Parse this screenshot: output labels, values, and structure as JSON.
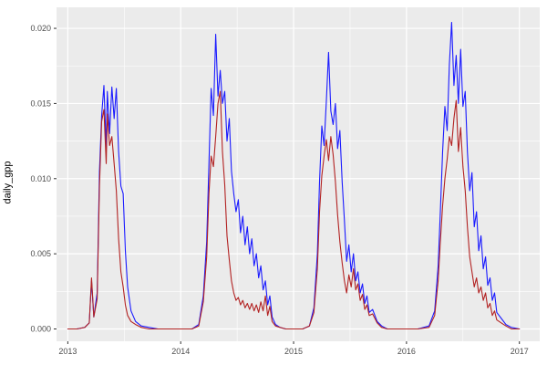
{
  "chart_data": {
    "type": "line",
    "title": "",
    "xlabel": "",
    "ylabel": "daily_gpp",
    "legend": "none",
    "grid": true,
    "panel_bg": "#ebebeb",
    "grid_color": "#ffffff",
    "tick_color": "#333333",
    "tick_label_color": "#4d4d4d",
    "xlim": [
      2012.9,
      2017.18
    ],
    "ylim": [
      -0.00082,
      0.0214
    ],
    "x_ticks": {
      "values": [
        2013,
        2014,
        2015,
        2016,
        2017
      ],
      "labels": [
        "2013",
        "2014",
        "2015",
        "2016",
        "2017"
      ]
    },
    "y_ticks": {
      "values": [
        0,
        0.005,
        0.01,
        0.015,
        0.02
      ],
      "labels": [
        "0.000",
        "0.005",
        "0.010",
        "0.015",
        "0.020"
      ]
    },
    "x_minor": [
      2013.5,
      2014.5,
      2015.5,
      2016.5
    ],
    "y_minor": [
      0.0025,
      0.0075,
      0.0125,
      0.0175
    ],
    "x": [
      2013.0,
      2013.08,
      2013.15,
      2013.19,
      2013.21,
      2013.23,
      2013.26,
      2013.28,
      2013.3,
      2013.32,
      2013.34,
      2013.35,
      2013.37,
      2013.39,
      2013.41,
      2013.43,
      2013.45,
      2013.47,
      2013.49,
      2013.51,
      2013.53,
      2013.56,
      2013.6,
      2013.65,
      2013.72,
      2013.8,
      2013.9,
      2014.0,
      2014.1,
      2014.16,
      2014.2,
      2014.23,
      2014.25,
      2014.27,
      2014.29,
      2014.31,
      2014.33,
      2014.35,
      2014.37,
      2014.39,
      2014.41,
      2014.43,
      2014.45,
      2014.47,
      2014.49,
      2014.51,
      2014.53,
      2014.55,
      2014.57,
      2014.59,
      2014.61,
      2014.63,
      2014.65,
      2014.67,
      2014.69,
      2014.71,
      2014.73,
      2014.75,
      2014.77,
      2014.79,
      2014.81,
      2014.84,
      2014.88,
      2014.93,
      2015.0,
      2015.08,
      2015.14,
      2015.18,
      2015.21,
      2015.23,
      2015.25,
      2015.27,
      2015.29,
      2015.31,
      2015.33,
      2015.35,
      2015.37,
      2015.39,
      2015.41,
      2015.43,
      2015.45,
      2015.47,
      2015.49,
      2015.51,
      2015.53,
      2015.55,
      2015.57,
      2015.59,
      2015.61,
      2015.63,
      2015.65,
      2015.67,
      2015.7,
      2015.74,
      2015.78,
      2015.83,
      2015.92,
      2016.0,
      2016.1,
      2016.2,
      2016.25,
      2016.28,
      2016.3,
      2016.32,
      2016.34,
      2016.36,
      2016.38,
      2016.4,
      2016.42,
      2016.44,
      2016.46,
      2016.48,
      2016.5,
      2016.52,
      2016.54,
      2016.56,
      2016.58,
      2016.6,
      2016.62,
      2016.64,
      2016.66,
      2016.68,
      2016.7,
      2016.72,
      2016.74,
      2016.76,
      2016.78,
      2016.8,
      2016.84,
      2016.88,
      2016.93,
      2017.0
    ],
    "series": [
      {
        "name": "blue",
        "color": "#1a1aff",
        "values": [
          0,
          0,
          0.0001,
          0.0004,
          0.0032,
          0.0008,
          0.0024,
          0.0105,
          0.0142,
          0.0162,
          0.012,
          0.0158,
          0.013,
          0.0161,
          0.014,
          0.016,
          0.0118,
          0.0095,
          0.009,
          0.0052,
          0.0028,
          0.0012,
          0.0005,
          0.0002,
          0.0001,
          0,
          0,
          0,
          0,
          0.0003,
          0.0022,
          0.0058,
          0.011,
          0.016,
          0.0142,
          0.0196,
          0.0155,
          0.0172,
          0.015,
          0.0158,
          0.0125,
          0.014,
          0.0105,
          0.009,
          0.0078,
          0.0086,
          0.0064,
          0.0075,
          0.0056,
          0.0068,
          0.005,
          0.006,
          0.0042,
          0.005,
          0.0034,
          0.0042,
          0.0026,
          0.0032,
          0.0016,
          0.0022,
          0.0008,
          0.0003,
          0.0001,
          0,
          0,
          0,
          0.0002,
          0.0014,
          0.005,
          0.0098,
          0.0135,
          0.0122,
          0.0152,
          0.0184,
          0.0145,
          0.0136,
          0.015,
          0.012,
          0.0132,
          0.0098,
          0.0072,
          0.0045,
          0.0056,
          0.0038,
          0.005,
          0.0032,
          0.0038,
          0.0024,
          0.003,
          0.0017,
          0.0022,
          0.0011,
          0.0013,
          0.0005,
          0.0002,
          0,
          0,
          0,
          0,
          0.0002,
          0.0012,
          0.0042,
          0.0078,
          0.0118,
          0.0148,
          0.0132,
          0.0176,
          0.0204,
          0.0162,
          0.0182,
          0.015,
          0.0186,
          0.0148,
          0.0158,
          0.0118,
          0.0092,
          0.0104,
          0.0068,
          0.0078,
          0.0052,
          0.0062,
          0.004,
          0.0048,
          0.0029,
          0.0034,
          0.0019,
          0.0024,
          0.0011,
          0.0007,
          0.0003,
          0.0001,
          0
        ]
      },
      {
        "name": "red",
        "color": "#b22222",
        "values": [
          0,
          0,
          0.0001,
          0.0004,
          0.0034,
          0.0008,
          0.002,
          0.0095,
          0.0138,
          0.0146,
          0.011,
          0.0143,
          0.0122,
          0.0128,
          0.011,
          0.0092,
          0.006,
          0.0038,
          0.0028,
          0.0016,
          0.0009,
          0.0005,
          0.0003,
          0.0001,
          0,
          0,
          0,
          0,
          0,
          0.0002,
          0.0018,
          0.0048,
          0.009,
          0.0115,
          0.0108,
          0.0128,
          0.015,
          0.0158,
          0.0118,
          0.0096,
          0.0062,
          0.0046,
          0.0032,
          0.0024,
          0.0019,
          0.0021,
          0.0016,
          0.0019,
          0.0014,
          0.0017,
          0.0013,
          0.0017,
          0.0012,
          0.0016,
          0.0011,
          0.0018,
          0.0012,
          0.0022,
          0.0009,
          0.0015,
          0.0005,
          0.0002,
          0.0001,
          0,
          0,
          0,
          0.0002,
          0.0011,
          0.004,
          0.0078,
          0.0102,
          0.0115,
          0.0126,
          0.0112,
          0.0128,
          0.0116,
          0.0098,
          0.0076,
          0.0058,
          0.0044,
          0.0032,
          0.0024,
          0.0036,
          0.0028,
          0.004,
          0.0026,
          0.003,
          0.0019,
          0.0023,
          0.0013,
          0.0016,
          0.0009,
          0.001,
          0.0004,
          0.0001,
          0,
          0,
          0,
          0,
          0.0001,
          0.0009,
          0.0032,
          0.0058,
          0.0082,
          0.01,
          0.0113,
          0.0128,
          0.0122,
          0.014,
          0.0152,
          0.0118,
          0.0134,
          0.0108,
          0.0092,
          0.0068,
          0.0048,
          0.0038,
          0.0028,
          0.0034,
          0.0024,
          0.0028,
          0.0019,
          0.0024,
          0.0014,
          0.0017,
          0.0009,
          0.0012,
          0.0006,
          0.0004,
          0.0002,
          0,
          0
        ]
      }
    ]
  }
}
